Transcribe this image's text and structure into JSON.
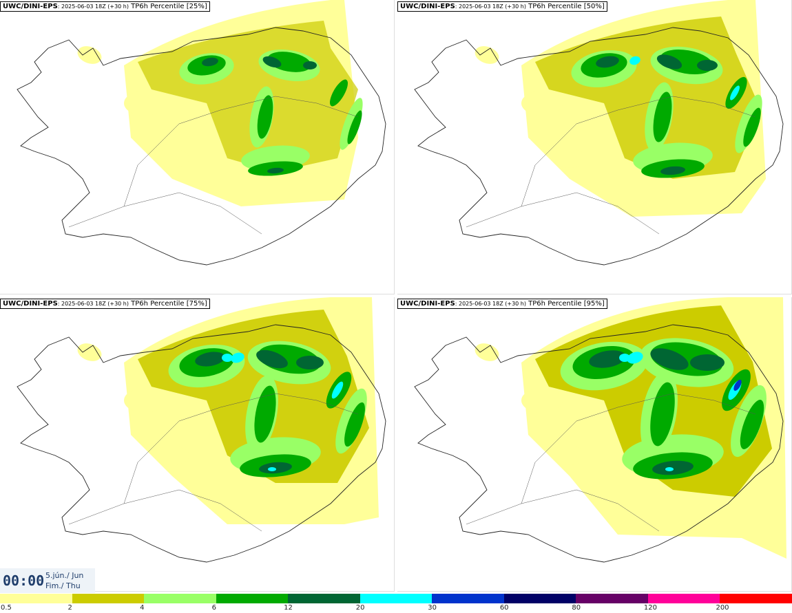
{
  "panels": [
    {
      "model": "UWC/DINI-EPS",
      "run": ": 2025-06-03 18Z (+30 h)",
      "label": "TP6h Percentile [25%]",
      "percentile": 25
    },
    {
      "model": "UWC/DINI-EPS",
      "run": ": 2025-06-03 18Z (+30 h)",
      "label": "TP6h Percentile [50%]",
      "percentile": 50
    },
    {
      "model": "UWC/DINI-EPS",
      "run": ": 2025-06-03 18Z (+30 h)",
      "label": "TP6h Percentile [75%]",
      "percentile": 75
    },
    {
      "model": "UWC/DINI-EPS",
      "run": ": 2025-06-03 18Z (+30 h)",
      "label": "TP6h Percentile [95%]",
      "percentile": 95
    }
  ],
  "time": {
    "clock": "00:00",
    "date_line": "5.jún./ Jun",
    "day_line": "Fim./ Thu"
  },
  "legend": {
    "labels": [
      "0.5",
      "2",
      "4",
      "6",
      "12",
      "20",
      "30",
      "60",
      "80",
      "120",
      "200"
    ],
    "colors": [
      "#ffff99",
      "#cccc00",
      "#99ff66",
      "#00aa00",
      "#006633",
      "#00ffff",
      "#0033cc",
      "#000066",
      "#660066",
      "#ff0099",
      "#ff0000"
    ]
  }
}
